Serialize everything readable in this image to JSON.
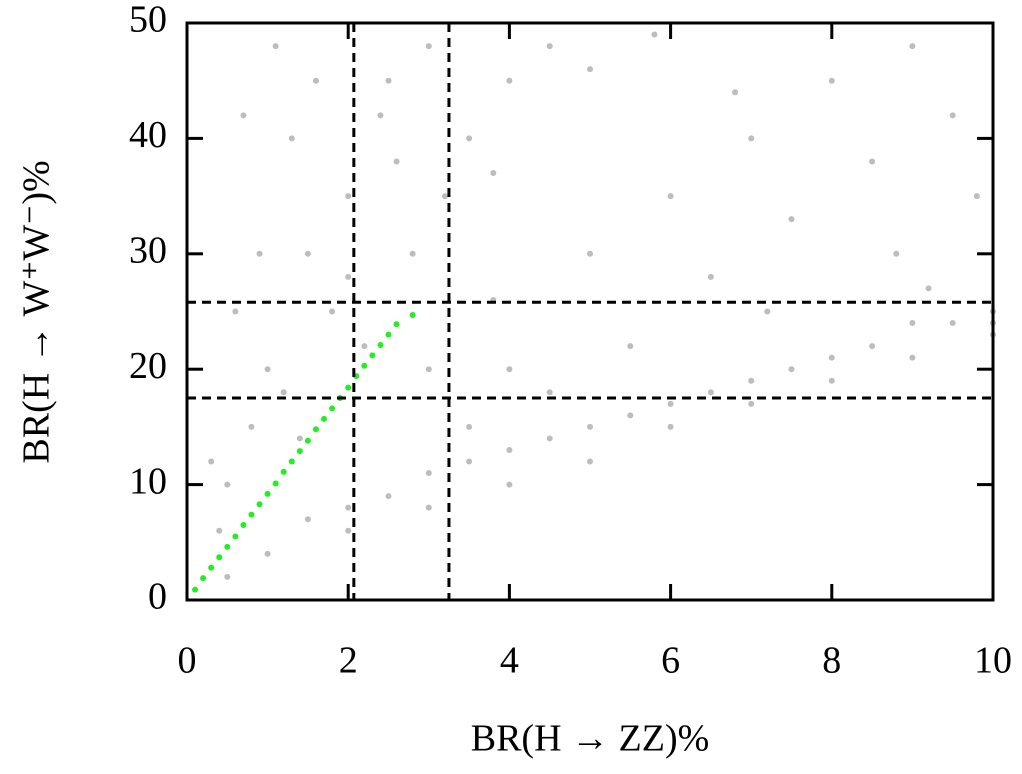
{
  "chart_data": {
    "type": "scatter",
    "x_label": "BR(H → ZZ)%",
    "y_label": "BR(H → W⁺W⁻)%",
    "xlim": [
      0,
      10
    ],
    "ylim": [
      0,
      50
    ],
    "xticks": [
      0,
      2,
      4,
      6,
      8,
      10
    ],
    "yticks": [
      0,
      10,
      20,
      30,
      40,
      50
    ],
    "vlines": [
      2.07,
      3.25
    ],
    "hlines": [
      17.5,
      25.8
    ],
    "series": [
      {
        "color": "#bdbdbd",
        "x": [
          0.5,
          0.8,
          1.0,
          1.2,
          0.6,
          1.5,
          2.0,
          1.3,
          2.5,
          3.0,
          1.8,
          2.2,
          2.8,
          3.5,
          4.0,
          4.5,
          3.2,
          2.6,
          1.6,
          0.9,
          0.7,
          1.1,
          2.0,
          3.8,
          5.0,
          5.8,
          2.4,
          0.4,
          0.3,
          1.4,
          4.0,
          5.0,
          6.0,
          7.0,
          8.0,
          9.0,
          6.5,
          7.5,
          8.5,
          9.5,
          5.5,
          4.5,
          3.5,
          3.0,
          7.2,
          8.8,
          9.8,
          6.8,
          3.8,
          9.2,
          1.0,
          2.0,
          3.0,
          4.0,
          5.0,
          6.0,
          7.0,
          8.0,
          9.0,
          10.0,
          10.0,
          9.5,
          8.5,
          7.5,
          6.5,
          5.5,
          4.5,
          3.5,
          2.5,
          1.5,
          0.5,
          3.0,
          5.0,
          7.0,
          9.0,
          2.0,
          4.0,
          6.0,
          8.0,
          10.0
        ],
        "y": [
          10,
          15,
          20,
          18,
          25,
          30,
          35,
          40,
          45,
          48,
          25,
          22,
          30,
          40,
          45,
          48,
          35,
          38,
          45,
          30,
          42,
          48,
          28,
          37,
          46,
          49,
          42,
          6,
          12,
          14,
          20,
          30,
          35,
          40,
          45,
          48,
          28,
          33,
          38,
          42,
          22,
          18,
          15,
          20,
          25,
          30,
          35,
          44,
          26,
          27,
          4,
          6,
          8,
          10,
          12,
          15,
          17,
          19,
          21,
          23,
          25,
          24,
          22,
          20,
          18,
          16,
          14,
          12,
          9,
          7,
          2,
          11,
          15,
          19,
          24,
          8,
          13,
          17,
          21,
          24
        ]
      },
      {
        "color": "#22ee22",
        "x": [
          0.1,
          0.2,
          0.3,
          0.4,
          0.5,
          0.6,
          0.7,
          0.8,
          0.9,
          1.0,
          1.1,
          1.2,
          1.3,
          1.4,
          1.5,
          1.6,
          1.7,
          1.8,
          1.9,
          2.0,
          2.1,
          2.2,
          2.3,
          2.4,
          2.5,
          2.6,
          2.8
        ],
        "y": [
          0.9,
          1.9,
          2.8,
          3.7,
          4.6,
          5.5,
          6.5,
          7.4,
          8.3,
          9.2,
          10.1,
          11.1,
          12.0,
          12.9,
          13.8,
          14.8,
          15.7,
          16.6,
          17.5,
          18.4,
          19.4,
          20.3,
          21.2,
          22.1,
          23.0,
          23.9,
          24.7
        ]
      }
    ]
  }
}
